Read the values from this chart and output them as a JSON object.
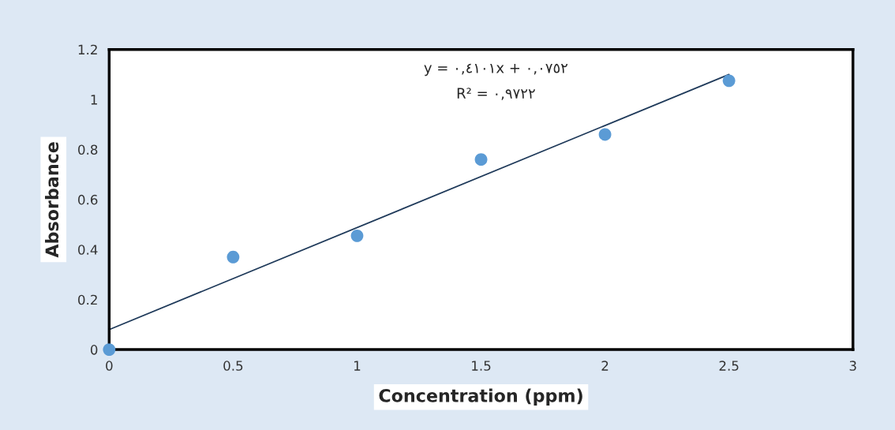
{
  "chart_data": {
    "type": "scatter",
    "xlabel": "Concentration (ppm)",
    "ylabel": "Absorbance",
    "xlim": [
      0,
      3
    ],
    "xticks": [
      0,
      0.5,
      1,
      1.5,
      2,
      2.5,
      3
    ],
    "ylim": [
      0,
      1.2
    ],
    "yticks": [
      0,
      0.2,
      0.4,
      0.6,
      0.8,
      1,
      1.2
    ],
    "grid": false,
    "legend": false,
    "series": [
      {
        "color": "#5b9bd5",
        "marker": "circle",
        "x": [
          0,
          0.5,
          1,
          1.5,
          2,
          2.5
        ],
        "values": [
          0,
          0.37,
          0.455,
          0.76,
          0.86,
          1.075
        ]
      },
      {
        "type": "line",
        "color": "#1f3a5a",
        "x": [
          0,
          2.5
        ],
        "values": [
          0.08,
          1.1
        ],
        "line_style": "solid"
      }
    ],
    "annotations": [
      "y = ٠,٤١٠١x + ٠,٠٧٥٢",
      "R² = ٠,٩٧٢٢"
    ]
  }
}
